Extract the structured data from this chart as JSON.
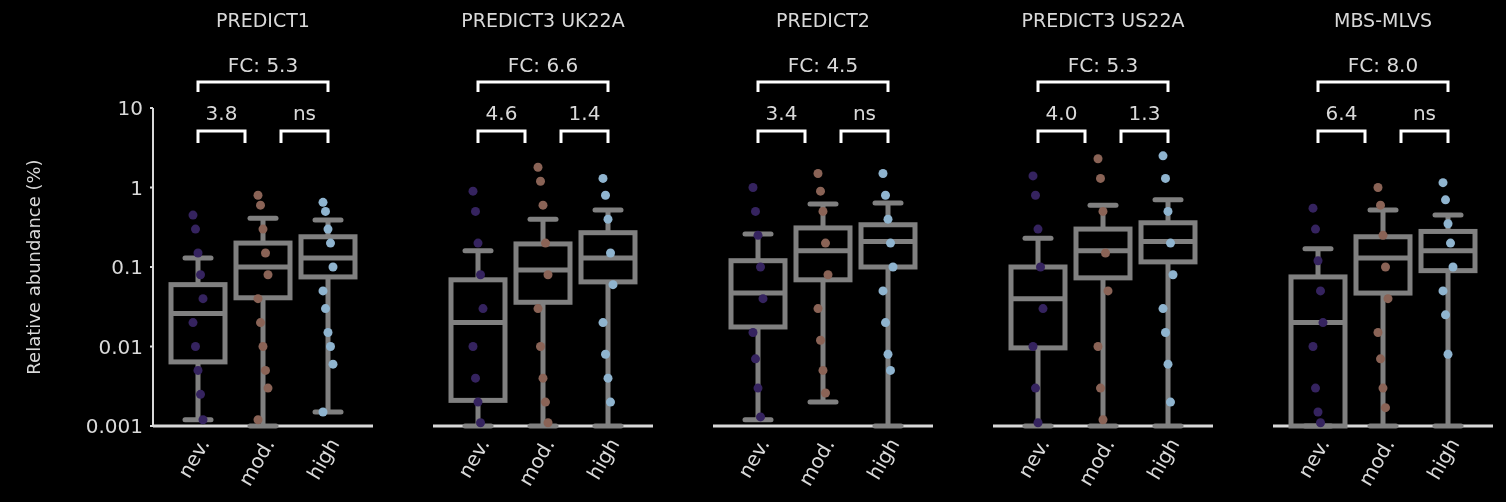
{
  "chart_data": [
    {
      "type": "box",
      "title": "PREDICT1",
      "ylabel": "Relative abundance (%)",
      "categories": [
        "nev.",
        "mod.",
        "high"
      ],
      "log": true,
      "ylim": [
        0.001,
        10
      ],
      "yticks": [
        0.001,
        0.01,
        0.1,
        1,
        10
      ],
      "annotations": [
        "FC: 5.3",
        "3.8",
        "ns"
      ],
      "series": [
        {
          "type": "box",
          "color": "#808080",
          "boxes": [
            {
              "low": 0.0012,
              "q1": 0.0064,
              "median": 0.026,
              "q3": 0.06,
              "high": 0.13
            },
            {
              "low": 0.001,
              "q1": 0.041,
              "median": 0.1,
              "q3": 0.2,
              "high": 0.41
            },
            {
              "low": 0.0015,
              "q1": 0.075,
              "median": 0.13,
              "q3": 0.24,
              "high": 0.39
            }
          ]
        },
        {
          "type": "scatter",
          "color": "#35235f",
          "x": [
            "nev.",
            "nev.",
            "nev.",
            "nev.",
            "nev.",
            "nev.",
            "nev.",
            "nev.",
            "nev.",
            "nev."
          ],
          "values": [
            0.45,
            0.3,
            0.15,
            0.08,
            0.04,
            0.02,
            0.01,
            0.005,
            0.0025,
            0.0012
          ]
        },
        {
          "type": "scatter",
          "color": "#8a6356",
          "x": [
            "mod.",
            "mod.",
            "mod.",
            "mod.",
            "mod.",
            "mod.",
            "mod.",
            "mod.",
            "mod.",
            "mod.",
            "mod."
          ],
          "values": [
            0.8,
            0.6,
            0.3,
            0.15,
            0.08,
            0.04,
            0.02,
            0.01,
            0.005,
            0.003,
            0.0012
          ]
        },
        {
          "type": "scatter",
          "color": "#8fb4cf",
          "x": [
            "high",
            "high",
            "high",
            "high",
            "high",
            "high",
            "high",
            "high",
            "high",
            "high",
            "high"
          ],
          "values": [
            0.65,
            0.5,
            0.3,
            0.2,
            0.1,
            0.05,
            0.03,
            0.015,
            0.01,
            0.006,
            0.0015
          ]
        }
      ]
    },
    {
      "type": "box",
      "title": "PREDICT3 UK22A",
      "categories": [
        "nev.",
        "mod.",
        "high"
      ],
      "log": true,
      "ylim": [
        0.001,
        10
      ],
      "tick_labels": "x",
      "annotations": [
        "FC: 6.6",
        "4.6",
        "1.4"
      ],
      "series": [
        {
          "type": "box",
          "color": "#808080",
          "boxes": [
            {
              "low": 0.001,
              "q1": 0.0021,
              "median": 0.02,
              "q3": 0.069,
              "high": 0.16
            },
            {
              "low": 0.001,
              "q1": 0.036,
              "median": 0.092,
              "q3": 0.195,
              "high": 0.4
            },
            {
              "low": 0.001,
              "q1": 0.065,
              "median": 0.13,
              "q3": 0.27,
              "high": 0.52
            }
          ]
        },
        {
          "type": "scatter",
          "color": "#35235f",
          "x": [
            "nev.",
            "nev.",
            "nev.",
            "nev.",
            "nev.",
            "nev.",
            "nev.",
            "nev.",
            "nev."
          ],
          "values": [
            0.9,
            0.5,
            0.2,
            0.08,
            0.03,
            0.01,
            0.004,
            0.002,
            0.0011
          ]
        },
        {
          "type": "scatter",
          "color": "#8a6356",
          "x": [
            "mod.",
            "mod.",
            "mod.",
            "mod.",
            "mod.",
            "mod.",
            "mod.",
            "mod.",
            "mod.",
            "mod."
          ],
          "values": [
            1.8,
            1.2,
            0.6,
            0.2,
            0.08,
            0.03,
            0.01,
            0.004,
            0.002,
            0.0011
          ]
        },
        {
          "type": "scatter",
          "color": "#8fb4cf",
          "x": [
            "high",
            "high",
            "high",
            "high",
            "high",
            "high",
            "high",
            "high",
            "high"
          ],
          "values": [
            1.3,
            0.8,
            0.4,
            0.15,
            0.06,
            0.02,
            0.008,
            0.004,
            0.002
          ]
        }
      ]
    },
    {
      "type": "box",
      "title": "PREDICT2",
      "categories": [
        "nev.",
        "mod.",
        "high"
      ],
      "log": true,
      "ylim": [
        0.001,
        10
      ],
      "tick_labels": "x",
      "annotations": [
        "FC: 4.5",
        "3.4",
        "ns"
      ],
      "series": [
        {
          "type": "box",
          "color": "#808080",
          "boxes": [
            {
              "low": 0.0012,
              "q1": 0.0176,
              "median": 0.047,
              "q3": 0.12,
              "high": 0.26
            },
            {
              "low": 0.002,
              "q1": 0.069,
              "median": 0.16,
              "q3": 0.31,
              "high": 0.62
            },
            {
              "low": 0.001,
              "q1": 0.1,
              "median": 0.21,
              "q3": 0.34,
              "high": 0.64
            }
          ]
        },
        {
          "type": "scatter",
          "color": "#35235f",
          "x": [
            "nev.",
            "nev.",
            "nev.",
            "nev.",
            "nev.",
            "nev.",
            "nev.",
            "nev.",
            "nev."
          ],
          "values": [
            1.0,
            0.5,
            0.25,
            0.1,
            0.04,
            0.015,
            0.007,
            0.003,
            0.0013
          ]
        },
        {
          "type": "scatter",
          "color": "#8a6356",
          "x": [
            "mod.",
            "mod.",
            "mod.",
            "mod.",
            "mod.",
            "mod.",
            "mod.",
            "mod.",
            "mod."
          ],
          "values": [
            1.5,
            0.9,
            0.5,
            0.2,
            0.08,
            0.03,
            0.012,
            0.005,
            0.0026
          ]
        },
        {
          "type": "scatter",
          "color": "#8fb4cf",
          "x": [
            "high",
            "high",
            "high",
            "high",
            "high",
            "high",
            "high",
            "high",
            "high"
          ],
          "values": [
            1.5,
            0.8,
            0.4,
            0.2,
            0.1,
            0.05,
            0.02,
            0.008,
            0.005
          ]
        }
      ]
    },
    {
      "type": "box",
      "title": "PREDICT3 US22A",
      "categories": [
        "nev.",
        "mod.",
        "high"
      ],
      "log": true,
      "ylim": [
        0.001,
        10
      ],
      "tick_labels": "x",
      "annotations": [
        "FC: 5.3",
        "4.0",
        "1.3"
      ],
      "series": [
        {
          "type": "box",
          "color": "#808080",
          "boxes": [
            {
              "low": 0.001,
              "q1": 0.0096,
              "median": 0.04,
              "q3": 0.1,
              "high": 0.23
            },
            {
              "low": 0.001,
              "q1": 0.073,
              "median": 0.16,
              "q3": 0.3,
              "high": 0.6
            },
            {
              "low": 0.001,
              "q1": 0.116,
              "median": 0.21,
              "q3": 0.36,
              "high": 0.7
            }
          ]
        },
        {
          "type": "scatter",
          "color": "#35235f",
          "x": [
            "nev.",
            "nev.",
            "nev.",
            "nev.",
            "nev.",
            "nev.",
            "nev.",
            "nev."
          ],
          "values": [
            1.4,
            0.8,
            0.3,
            0.1,
            0.03,
            0.01,
            0.003,
            0.0011
          ]
        },
        {
          "type": "scatter",
          "color": "#8a6356",
          "x": [
            "mod.",
            "mod.",
            "mod.",
            "mod.",
            "mod.",
            "mod.",
            "mod.",
            "mod."
          ],
          "values": [
            2.3,
            1.3,
            0.5,
            0.15,
            0.05,
            0.01,
            0.003,
            0.0012
          ]
        },
        {
          "type": "scatter",
          "color": "#8fb4cf",
          "x": [
            "high",
            "high",
            "high",
            "high",
            "high",
            "high",
            "high",
            "high",
            "high"
          ],
          "values": [
            2.5,
            1.3,
            0.5,
            0.2,
            0.08,
            0.03,
            0.015,
            0.006,
            0.002
          ]
        }
      ]
    },
    {
      "type": "box",
      "title": "MBS-MLVS",
      "categories": [
        "nev.",
        "mod.",
        "high"
      ],
      "log": true,
      "ylim": [
        0.001,
        10
      ],
      "tick_labels": "x",
      "annotations": [
        "FC: 8.0",
        "6.4",
        "ns"
      ],
      "series": [
        {
          "type": "box",
          "color": "#808080",
          "boxes": [
            {
              "low": 0.001,
              "q1": 0.001,
              "median": 0.02,
              "q3": 0.075,
              "high": 0.17
            },
            {
              "low": 0.001,
              "q1": 0.047,
              "median": 0.13,
              "q3": 0.24,
              "high": 0.52
            },
            {
              "low": 0.001,
              "q1": 0.09,
              "median": 0.16,
              "q3": 0.28,
              "high": 0.45
            }
          ]
        },
        {
          "type": "scatter",
          "color": "#35235f",
          "x": [
            "nev.",
            "nev.",
            "nev.",
            "nev.",
            "nev.",
            "nev.",
            "nev.",
            "nev.",
            "nev."
          ],
          "values": [
            0.55,
            0.3,
            0.12,
            0.05,
            0.02,
            0.01,
            0.003,
            0.0015,
            0.0011
          ]
        },
        {
          "type": "scatter",
          "color": "#8a6356",
          "x": [
            "mod.",
            "mod.",
            "mod.",
            "mod.",
            "mod.",
            "mod.",
            "mod.",
            "mod.",
            "mod."
          ],
          "values": [
            1.0,
            0.6,
            0.25,
            0.1,
            0.04,
            0.015,
            0.007,
            0.003,
            0.0017
          ]
        },
        {
          "type": "scatter",
          "color": "#8fb4cf",
          "x": [
            "high",
            "high",
            "high",
            "high",
            "high",
            "high",
            "high",
            "high"
          ],
          "values": [
            1.15,
            0.7,
            0.35,
            0.2,
            0.1,
            0.05,
            0.025,
            0.008
          ]
        }
      ]
    }
  ]
}
